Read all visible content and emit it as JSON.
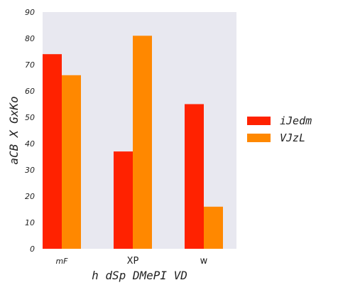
{
  "chart_data": {
    "type": "bar",
    "categories": [
      "mF",
      "XP",
      "w"
    ],
    "category_italic": [
      true,
      false,
      false
    ],
    "series": [
      {
        "name": "iJedm",
        "color": "#ff2200",
        "values": [
          74,
          37,
          55
        ]
      },
      {
        "name": "VJzL",
        "color": "#ff8800",
        "values": [
          66,
          81,
          16
        ]
      }
    ],
    "xlabel": "h dSp DMePI VD",
    "ylabel": "aCB X GxKo",
    "ylim": [
      0,
      90
    ],
    "yticks": [
      0,
      10,
      20,
      30,
      40,
      50,
      60,
      70,
      80,
      90
    ],
    "grid": false,
    "background": "#e8e8f0",
    "legend_position": "right"
  }
}
